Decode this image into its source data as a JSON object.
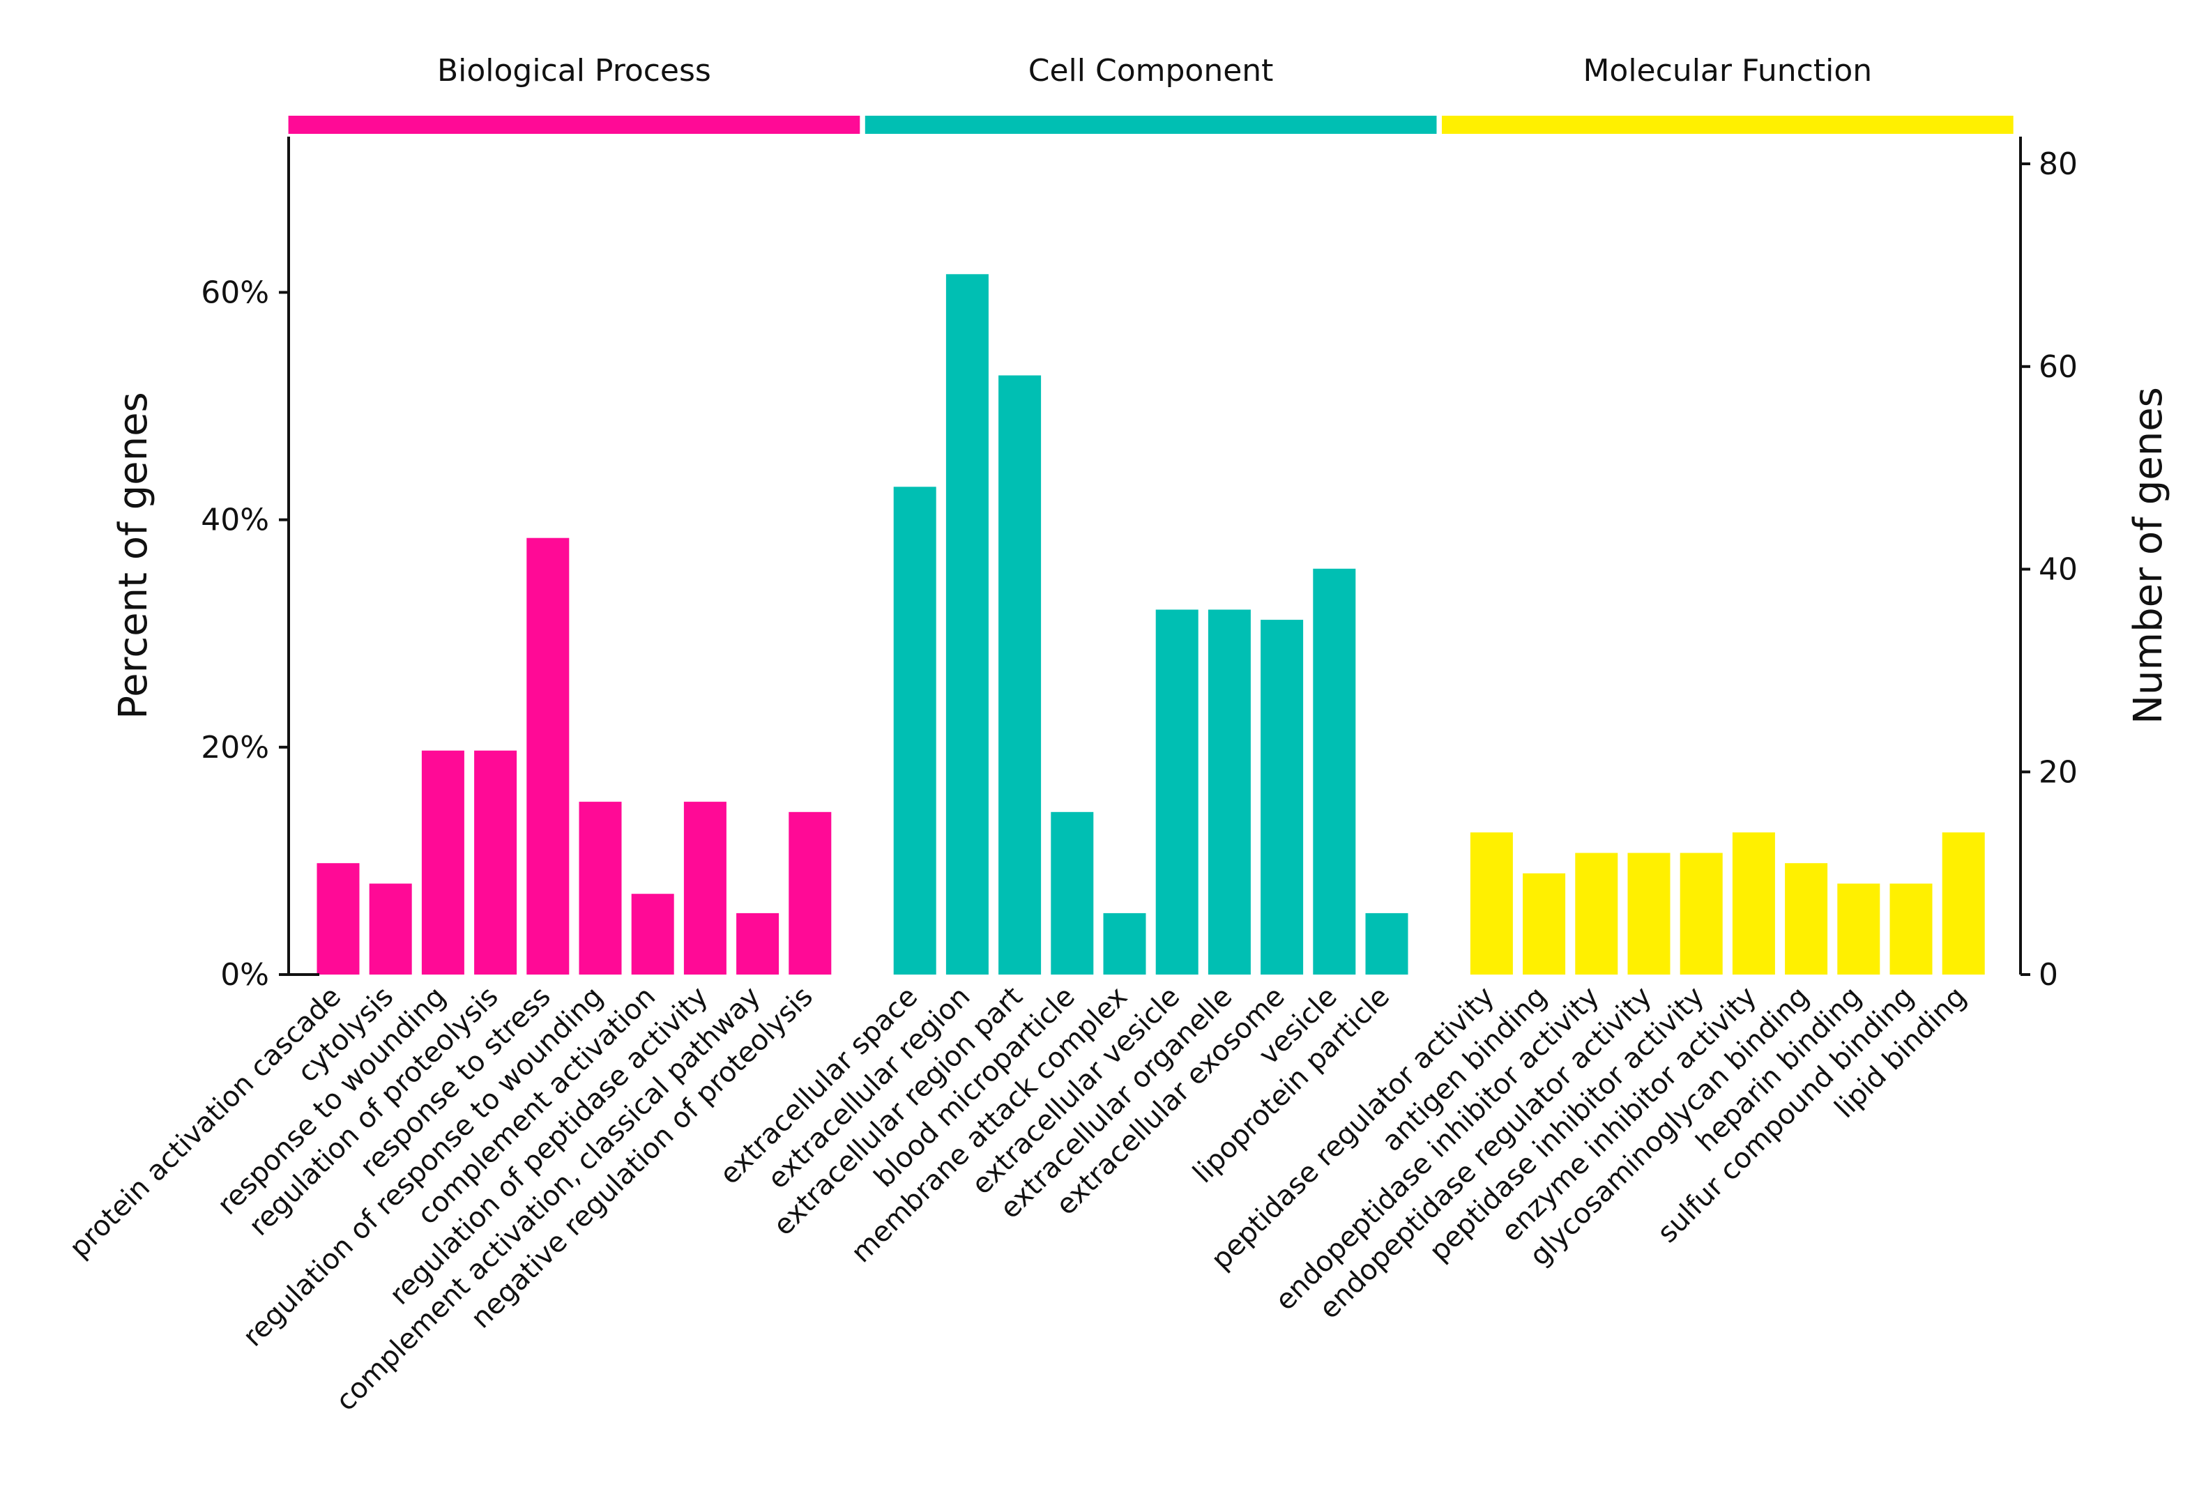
{
  "chart_data": {
    "type": "bar",
    "ylabel_left": "Percent of genes",
    "ylabel_right": "Number of genes",
    "left_ticks": [
      "0%",
      "20%",
      "40%",
      "60%"
    ],
    "left_tick_values": [
      0,
      20,
      40,
      60
    ],
    "right_ticks": [
      "0",
      "20",
      "40",
      "60",
      "80"
    ],
    "right_tick_values": [
      0,
      20,
      40,
      60,
      80
    ],
    "ylim_percent": [
      0,
      73.7
    ],
    "ylim_count": [
      0,
      80
    ],
    "groups": [
      {
        "name": "Biological Process",
        "color": "#FF0A96",
        "categories": [
          "protein activation cascade",
          "cytolysis",
          "response to wounding",
          "regulation of proteolysis",
          "response to stress",
          "regulation of response to wounding",
          "complement activation",
          "regulation of peptidase activity",
          "complement activation, classical pathway",
          "negative regulation of proteolysis"
        ],
        "values": [
          9.8,
          8.0,
          19.7,
          19.7,
          38.4,
          15.2,
          7.1,
          15.2,
          5.4,
          14.3
        ]
      },
      {
        "name": "Cell Component",
        "color": "#00BFB3",
        "categories": [
          "extracellular space",
          "extracellular region",
          "extracellular region part",
          "blood microparticle",
          "membrane attack complex",
          "extracellular vesicle",
          "extracellular organelle",
          "extracellular exosome",
          "vesicle",
          "lipoprotein particle"
        ],
        "values": [
          42.9,
          61.6,
          52.7,
          14.3,
          5.4,
          32.1,
          32.1,
          31.2,
          35.7,
          5.4
        ]
      },
      {
        "name": "Molecular Function",
        "color": "#FFF000",
        "categories": [
          "peptidase regulator activity",
          "antigen binding",
          "endopeptidase inhibitor activity",
          "endopeptidase regulator activity",
          "peptidase inhibitor activity",
          "enzyme inhibitor activity",
          "glycosaminoglycan binding",
          "heparin binding",
          "sulfur compound binding",
          "lipid binding"
        ],
        "values": [
          12.5,
          8.9,
          10.7,
          10.7,
          10.7,
          12.5,
          9.8,
          8.0,
          8.0,
          12.5
        ]
      }
    ]
  }
}
